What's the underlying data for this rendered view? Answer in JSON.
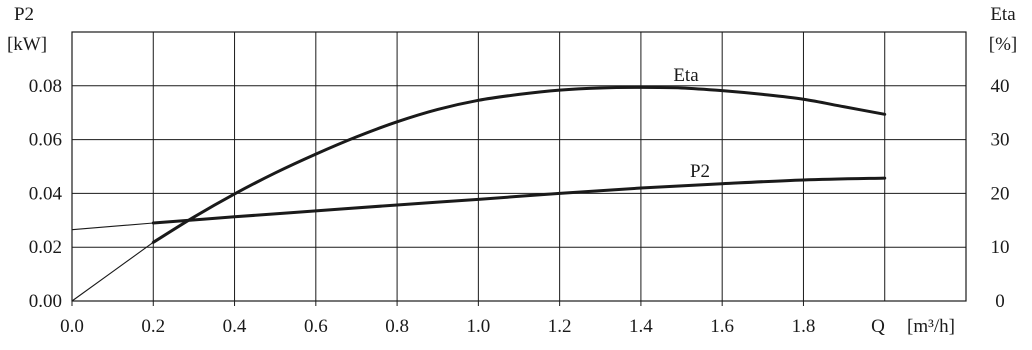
{
  "chart_data": {
    "type": "line",
    "x_axis": {
      "label": "Q",
      "unit": "[m³/h]",
      "range": [
        0.0,
        2.2
      ],
      "ticks": [
        0.0,
        0.2,
        0.4,
        0.6,
        0.8,
        1.0,
        1.2,
        1.4,
        1.6,
        1.8
      ],
      "tick_labels": [
        "0.0",
        "0.2",
        "0.4",
        "0.6",
        "0.8",
        "1.0",
        "1.2",
        "1.4",
        "1.6",
        "1.8"
      ]
    },
    "y_axis_left": {
      "label": "P2",
      "unit": "[kW]",
      "range": [
        0.0,
        0.1
      ],
      "ticks": [
        0.0,
        0.02,
        0.04,
        0.06,
        0.08
      ],
      "tick_labels": [
        "0.00",
        "0.02",
        "0.04",
        "0.06",
        "0.08"
      ]
    },
    "y_axis_right": {
      "label": "Eta",
      "unit": "[%]",
      "range": [
        0,
        50
      ],
      "ticks": [
        0,
        10,
        20,
        30,
        40
      ],
      "tick_labels": [
        "0",
        "10",
        "20",
        "30",
        "40"
      ]
    },
    "grid": true,
    "series": [
      {
        "name": "P2",
        "axis": "left",
        "extrapolated_x": [
          0.0,
          0.2
        ],
        "extrapolated_y": [
          0.0265,
          0.029
        ],
        "x": [
          0.2,
          0.4,
          0.6,
          0.8,
          1.0,
          1.2,
          1.4,
          1.6,
          1.8,
          2.0
        ],
        "y": [
          0.029,
          0.0313,
          0.0335,
          0.0357,
          0.0378,
          0.04,
          0.042,
          0.0436,
          0.045,
          0.0457
        ]
      },
      {
        "name": "Eta",
        "axis": "right",
        "extrapolated_x": [
          0.0,
          0.2
        ],
        "extrapolated_y": [
          0.0,
          10.9
        ],
        "x": [
          0.2,
          0.3,
          0.4,
          0.5,
          0.6,
          0.7,
          0.8,
          0.9,
          1.0,
          1.1,
          1.2,
          1.3,
          1.4,
          1.5,
          1.6,
          1.7,
          1.8,
          1.9,
          2.0
        ],
        "y": [
          10.9,
          15.6,
          19.9,
          23.8,
          27.3,
          30.5,
          33.3,
          35.6,
          37.3,
          38.4,
          39.2,
          39.6,
          39.7,
          39.6,
          39.1,
          38.4,
          37.5,
          36.1,
          34.7
        ]
      }
    ]
  }
}
